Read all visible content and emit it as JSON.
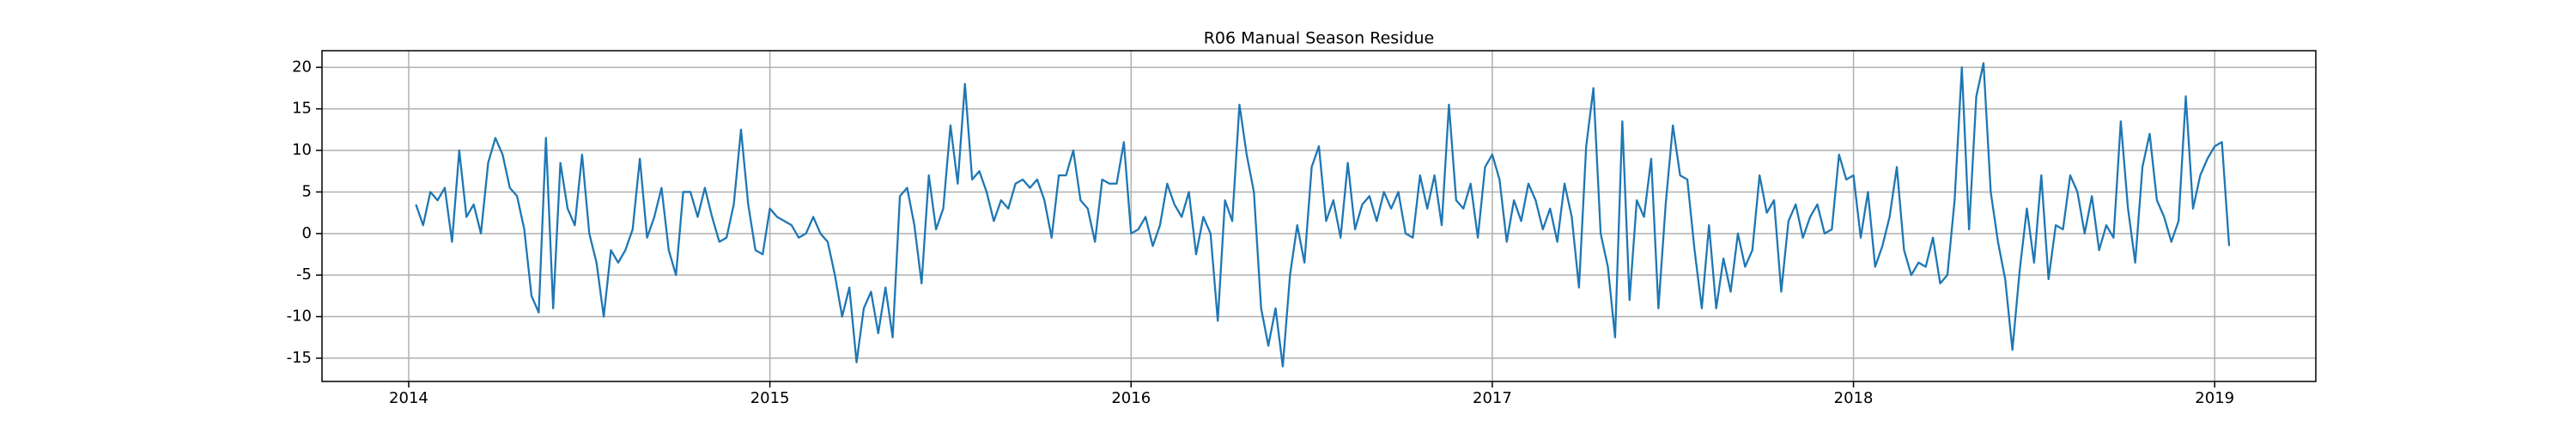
{
  "chart_data": {
    "type": "line",
    "title": "R06 Manual Season Residue",
    "xlim": [
      2013.76,
      2019.28
    ],
    "ylim": [
      -17.8,
      22
    ],
    "xticks": [
      2014,
      2015,
      2016,
      2017,
      2018,
      2019
    ],
    "yticks": [
      -15,
      -10,
      -5,
      0,
      5,
      10,
      15,
      20
    ],
    "grid": true,
    "x": [
      2014.02,
      2014.04,
      2014.06,
      2014.08,
      2014.1,
      2014.12,
      2014.14,
      2014.16,
      2014.18,
      2014.2,
      2014.22,
      2014.24,
      2014.26,
      2014.28,
      2014.3,
      2014.32,
      2014.34,
      2014.36,
      2014.38,
      2014.4,
      2014.42,
      2014.44,
      2014.46,
      2014.48,
      2014.5,
      2014.52,
      2014.54,
      2014.56,
      2014.58,
      2014.6,
      2014.62,
      2014.64,
      2014.66,
      2014.68,
      2014.7,
      2014.72,
      2014.74,
      2014.76,
      2014.78,
      2014.8,
      2014.82,
      2014.84,
      2014.86,
      2014.88,
      2014.9,
      2014.92,
      2014.94,
      2014.96,
      2014.98,
      2015,
      2015.02,
      2015.04,
      2015.06,
      2015.08,
      2015.1,
      2015.12,
      2015.14,
      2015.16,
      2015.18,
      2015.2,
      2015.22,
      2015.24,
      2015.26,
      2015.28,
      2015.3,
      2015.32,
      2015.34,
      2015.36,
      2015.38,
      2015.4,
      2015.42,
      2015.44,
      2015.46,
      2015.48,
      2015.5,
      2015.52,
      2015.54,
      2015.56,
      2015.58,
      2015.6,
      2015.62,
      2015.64,
      2015.66,
      2015.68,
      2015.7,
      2015.72,
      2015.74,
      2015.76,
      2015.78,
      2015.8,
      2015.82,
      2015.84,
      2015.86,
      2015.88,
      2015.9,
      2015.92,
      2015.94,
      2015.96,
      2015.98,
      2016,
      2016.02,
      2016.04,
      2016.06,
      2016.08,
      2016.1,
      2016.12,
      2016.14,
      2016.16,
      2016.18,
      2016.2,
      2016.22,
      2016.24,
      2016.26,
      2016.28,
      2016.3,
      2016.32,
      2016.34,
      2016.36,
      2016.38,
      2016.4,
      2016.42,
      2016.44,
      2016.46,
      2016.48,
      2016.5,
      2016.52,
      2016.54,
      2016.56,
      2016.58,
      2016.6,
      2016.62,
      2016.64,
      2016.66,
      2016.68,
      2016.7,
      2016.72,
      2016.74,
      2016.76,
      2016.78,
      2016.8,
      2016.82,
      2016.84,
      2016.86,
      2016.88,
      2016.9,
      2016.92,
      2016.94,
      2016.96,
      2016.98,
      2017,
      2017.02,
      2017.04,
      2017.06,
      2017.08,
      2017.1,
      2017.12,
      2017.14,
      2017.16,
      2017.18,
      2017.2,
      2017.22,
      2017.24,
      2017.26,
      2017.28,
      2017.3,
      2017.32,
      2017.34,
      2017.36,
      2017.38,
      2017.4,
      2017.42,
      2017.44,
      2017.46,
      2017.48,
      2017.5,
      2017.52,
      2017.54,
      2017.56,
      2017.58,
      2017.6,
      2017.62,
      2017.64,
      2017.66,
      2017.68,
      2017.7,
      2017.72,
      2017.74,
      2017.76,
      2017.78,
      2017.8,
      2017.82,
      2017.84,
      2017.86,
      2017.88,
      2017.9,
      2017.92,
      2017.94,
      2017.96,
      2017.98,
      2018,
      2018.02,
      2018.04,
      2018.06,
      2018.08,
      2018.1,
      2018.12,
      2018.14,
      2018.16,
      2018.18,
      2018.2,
      2018.22,
      2018.24,
      2018.26,
      2018.28,
      2018.3,
      2018.32,
      2018.34,
      2018.36,
      2018.38,
      2018.4,
      2018.42,
      2018.44,
      2018.46,
      2018.48,
      2018.5,
      2018.52,
      2018.54,
      2018.56,
      2018.58,
      2018.6,
      2018.62,
      2018.64,
      2018.66,
      2018.68,
      2018.7,
      2018.72,
      2018.74,
      2018.76,
      2018.78,
      2018.8,
      2018.82,
      2018.84,
      2018.86,
      2018.88,
      2018.9,
      2018.92,
      2018.94,
      2018.96,
      2018.98,
      2019,
      2019.02,
      2019.04
    ],
    "series": [
      {
        "color": "#1f77b4",
        "values": [
          3.5,
          1,
          5,
          4,
          5.5,
          -1,
          10,
          2,
          3.5,
          0,
          8.5,
          11.5,
          9.5,
          5.5,
          4.5,
          0.5,
          -7.5,
          -9.5,
          11.5,
          -9,
          8.5,
          3,
          1,
          9.5,
          0,
          -3.5,
          -10,
          -2,
          -3.5,
          -2,
          0.5,
          9,
          -0.5,
          2,
          5.5,
          -2,
          -5,
          5,
          5,
          2,
          5.5,
          2,
          -1,
          -0.5,
          3.5,
          12.5,
          3.5,
          -2,
          -2.5,
          3,
          2,
          1.5,
          1,
          -0.5,
          0,
          2,
          0,
          -1,
          -5,
          -10,
          -6.5,
          -15.5,
          -9,
          -7,
          -12,
          -6.5,
          -12.5,
          4.5,
          5.5,
          1,
          -6,
          7,
          0.5,
          3,
          13,
          6,
          18,
          6.5,
          7.5,
          5,
          1.5,
          4,
          3,
          6,
          6.5,
          5.5,
          6.5,
          4,
          -0.5,
          7,
          7,
          10,
          4,
          3,
          -1,
          6.5,
          6,
          6,
          11,
          0,
          0.5,
          2,
          -1.5,
          1,
          6,
          3.5,
          2,
          5,
          -2.5,
          2,
          0,
          -10.5,
          4,
          1.5,
          15.5,
          9.5,
          5,
          -9,
          -13.5,
          -9,
          -16,
          -5,
          1,
          -3.5,
          8,
          10.5,
          1.5,
          4,
          -0.5,
          8.5,
          0.5,
          3.5,
          4.5,
          1.5,
          5,
          3,
          5,
          0,
          -0.5,
          7,
          3,
          7,
          1,
          15.5,
          4,
          3,
          6,
          -0.5,
          8,
          9.5,
          6.5,
          -1,
          4,
          1.5,
          6,
          4,
          0.5,
          3,
          -1,
          6,
          2,
          -6.5,
          10.5,
          17.5,
          0,
          -4,
          -12.5,
          13.5,
          -8,
          4,
          2,
          9,
          -9,
          3.5,
          13,
          7,
          6.5,
          -2,
          -9,
          1,
          -9,
          -3,
          -7,
          0,
          -4,
          -2,
          7,
          2.5,
          4,
          -7,
          1.5,
          3.5,
          -0.5,
          2,
          3.5,
          0,
          0.5,
          9.5,
          6.5,
          7,
          -0.5,
          5,
          -4,
          -1.5,
          2,
          8,
          -2,
          -5,
          -3.5,
          -4,
          -0.5,
          -6,
          -5,
          4,
          20,
          0.5,
          16.5,
          20.5,
          5,
          -1,
          -5.5,
          -14,
          -4.5,
          3,
          -3.5,
          7,
          -5.5,
          1,
          0.5,
          7,
          5,
          0,
          4.5,
          -2,
          1,
          -0.5,
          13.5,
          3,
          -3.5,
          8,
          12,
          4,
          2,
          -1,
          1.5,
          16.5,
          3,
          7,
          9,
          10.5,
          11,
          -1.5
        ]
      }
    ]
  }
}
